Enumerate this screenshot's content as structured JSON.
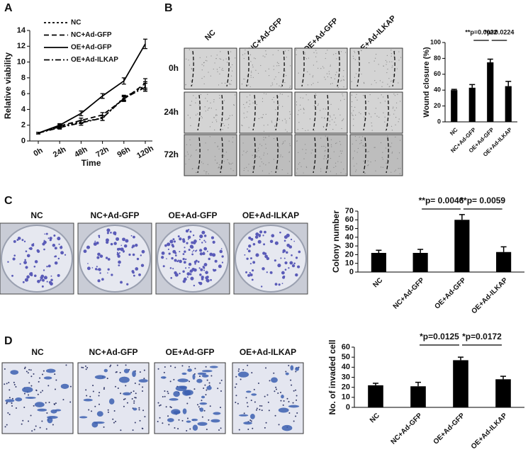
{
  "panels": {
    "labels": [
      "A",
      "B",
      "C",
      "D"
    ],
    "wound_images": {
      "columns": [
        "NC",
        "NC+Ad-GFP",
        "OE+Ad-GFP",
        "OE+Ad-ILKAP"
      ],
      "rows": [
        "0h",
        "24h",
        "72h"
      ]
    },
    "colony_images": {
      "columns": [
        "NC",
        "NC+Ad-GFP",
        "OE+Ad-GFP",
        "OE+Ad-ILKAP"
      ]
    },
    "invasion_images": {
      "columns": [
        "NC",
        "NC+Ad-GFP",
        "OE+Ad-GFP",
        "OE+Ad-ILKAP"
      ]
    }
  },
  "chart_data": [
    {
      "type": "line",
      "x_label": "Time",
      "y_label": "Relative viability",
      "categories": [
        "0h",
        "24h",
        "48h",
        "72h",
        "96h",
        "120h"
      ],
      "ylim": [
        0,
        14
      ],
      "yticks": [
        0,
        2,
        4,
        6,
        8,
        10,
        12,
        14
      ],
      "legend": "upper left",
      "series": [
        {
          "name": "NC",
          "color": "#000000",
          "line_style": "dotted",
          "values": [
            1,
            1.8,
            2.4,
            2.9,
            5.5,
            7.0
          ],
          "errors": [
            0.1,
            0.2,
            0.2,
            0.3,
            0.3,
            0.5
          ]
        },
        {
          "name": "NC+Ad-GFP",
          "color": "#000000",
          "line_style": "dashed",
          "values": [
            1,
            1.9,
            2.6,
            3.3,
            5.3,
            7.3
          ],
          "errors": [
            0.1,
            0.2,
            0.3,
            0.3,
            0.3,
            0.6
          ]
        },
        {
          "name": "OE+Ad-GFP",
          "color": "#000000",
          "line_style": "solid",
          "values": [
            1,
            2.0,
            3.5,
            5.7,
            7.6,
            12.3
          ],
          "errors": [
            0.1,
            0.2,
            0.3,
            0.3,
            0.4,
            0.6
          ]
        },
        {
          "name": "OE+Ad-ILKAP",
          "color": "#000000",
          "line_style": "dashdot",
          "values": [
            1,
            1.7,
            2.3,
            2.9,
            5.4,
            6.8
          ],
          "errors": [
            0.1,
            0.2,
            0.3,
            0.3,
            0.3,
            0.5
          ]
        }
      ]
    },
    {
      "type": "bar",
      "y_label": "Wound closure (%)",
      "color": "#000000",
      "categories": [
        "NC",
        "NC+Ad-GFP",
        "OE+Ad-GFP",
        "OE+Ad-ILKAP"
      ],
      "values": [
        40,
        43,
        75,
        45
      ],
      "errors": [
        1,
        4,
        4,
        6
      ],
      "ylim": [
        0,
        100
      ],
      "yticks": [
        0,
        20,
        40,
        60,
        80,
        100
      ],
      "annotations": [
        "**p=0.0022",
        "*p=0.0224"
      ]
    },
    {
      "type": "bar",
      "y_label": "Colony number",
      "color": "#000000",
      "categories": [
        "NC",
        "NC+Ad-GFP",
        "OE+Ad-GFP",
        "OE+Ad-ILKAP"
      ],
      "values": [
        22,
        22,
        60,
        23
      ],
      "errors": [
        3,
        4,
        6,
        6
      ],
      "ylim": [
        0,
        70
      ],
      "yticks": [
        0,
        10,
        20,
        30,
        40,
        50,
        60,
        70
      ],
      "annotations": [
        "**p= 0.0046",
        "**p= 0.0059"
      ]
    },
    {
      "type": "bar",
      "y_label": "No. of invaded cell",
      "color": "#000000",
      "categories": [
        "NC",
        "NC+Ad-GFP",
        "OE+Ad-GFP",
        "OE+Ad-ILKAP"
      ],
      "values": [
        22,
        21,
        47,
        28
      ],
      "errors": [
        2,
        4,
        3,
        3
      ],
      "ylim": [
        0,
        60
      ],
      "yticks": [
        0,
        10,
        20,
        30,
        40,
        50,
        60
      ],
      "annotations": [
        "*p=0.0125",
        "*p=0.0172"
      ]
    }
  ]
}
